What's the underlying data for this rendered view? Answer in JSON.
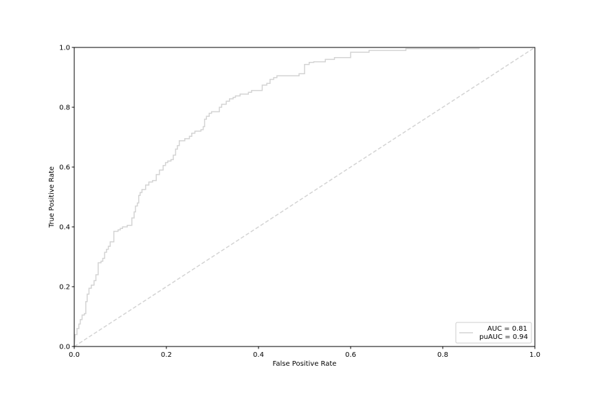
{
  "chart_data": {
    "type": "line",
    "title": "",
    "xlabel": "False Positive Rate",
    "ylabel": "True Positive Rate",
    "xlim": [
      0,
      1
    ],
    "ylim": [
      0,
      1
    ],
    "xticks": [
      "0.0",
      "0.2",
      "0.4",
      "0.6",
      "0.8",
      "1.0"
    ],
    "yticks": [
      "0.0",
      "0.2",
      "0.4",
      "0.6",
      "0.8",
      "1.0"
    ],
    "grid": false,
    "legend_position": "lower-right",
    "legend_lines": [
      "AUC = 0.81",
      "puAUC = 0.94"
    ],
    "series": [
      {
        "style": "solid",
        "color": "#d3d3d3",
        "points": [
          [
            0.0,
            0.0
          ],
          [
            0.002,
            0.04
          ],
          [
            0.006,
            0.04
          ],
          [
            0.006,
            0.06
          ],
          [
            0.01,
            0.06
          ],
          [
            0.01,
            0.075
          ],
          [
            0.013,
            0.075
          ],
          [
            0.013,
            0.09
          ],
          [
            0.017,
            0.09
          ],
          [
            0.017,
            0.105
          ],
          [
            0.022,
            0.105
          ],
          [
            0.022,
            0.11
          ],
          [
            0.025,
            0.11
          ],
          [
            0.025,
            0.15
          ],
          [
            0.028,
            0.15
          ],
          [
            0.028,
            0.175
          ],
          [
            0.032,
            0.175
          ],
          [
            0.032,
            0.195
          ],
          [
            0.037,
            0.195
          ],
          [
            0.037,
            0.205
          ],
          [
            0.043,
            0.205
          ],
          [
            0.043,
            0.22
          ],
          [
            0.047,
            0.22
          ],
          [
            0.047,
            0.24
          ],
          [
            0.052,
            0.24
          ],
          [
            0.052,
            0.28
          ],
          [
            0.058,
            0.28
          ],
          [
            0.058,
            0.285
          ],
          [
            0.062,
            0.285
          ],
          [
            0.062,
            0.295
          ],
          [
            0.066,
            0.295
          ],
          [
            0.066,
            0.315
          ],
          [
            0.07,
            0.315
          ],
          [
            0.07,
            0.325
          ],
          [
            0.074,
            0.325
          ],
          [
            0.074,
            0.335
          ],
          [
            0.078,
            0.335
          ],
          [
            0.078,
            0.35
          ],
          [
            0.086,
            0.35
          ],
          [
            0.086,
            0.385
          ],
          [
            0.095,
            0.385
          ],
          [
            0.095,
            0.39
          ],
          [
            0.1,
            0.39
          ],
          [
            0.1,
            0.395
          ],
          [
            0.105,
            0.395
          ],
          [
            0.105,
            0.4
          ],
          [
            0.115,
            0.4
          ],
          [
            0.115,
            0.405
          ],
          [
            0.125,
            0.405
          ],
          [
            0.125,
            0.43
          ],
          [
            0.13,
            0.43
          ],
          [
            0.13,
            0.45
          ],
          [
            0.133,
            0.45
          ],
          [
            0.133,
            0.47
          ],
          [
            0.137,
            0.47
          ],
          [
            0.137,
            0.48
          ],
          [
            0.14,
            0.48
          ],
          [
            0.14,
            0.505
          ],
          [
            0.143,
            0.505
          ],
          [
            0.143,
            0.515
          ],
          [
            0.147,
            0.515
          ],
          [
            0.147,
            0.525
          ],
          [
            0.155,
            0.525
          ],
          [
            0.155,
            0.54
          ],
          [
            0.162,
            0.54
          ],
          [
            0.162,
            0.55
          ],
          [
            0.17,
            0.55
          ],
          [
            0.17,
            0.555
          ],
          [
            0.178,
            0.555
          ],
          [
            0.178,
            0.575
          ],
          [
            0.185,
            0.575
          ],
          [
            0.185,
            0.59
          ],
          [
            0.193,
            0.59
          ],
          [
            0.193,
            0.605
          ],
          [
            0.198,
            0.605
          ],
          [
            0.198,
            0.615
          ],
          [
            0.203,
            0.615
          ],
          [
            0.203,
            0.62
          ],
          [
            0.21,
            0.62
          ],
          [
            0.21,
            0.625
          ],
          [
            0.215,
            0.625
          ],
          [
            0.215,
            0.64
          ],
          [
            0.22,
            0.64
          ],
          [
            0.22,
            0.66
          ],
          [
            0.224,
            0.66
          ],
          [
            0.224,
            0.672
          ],
          [
            0.228,
            0.672
          ],
          [
            0.228,
            0.688
          ],
          [
            0.24,
            0.688
          ],
          [
            0.24,
            0.695
          ],
          [
            0.25,
            0.695
          ],
          [
            0.25,
            0.703
          ],
          [
            0.255,
            0.703
          ],
          [
            0.255,
            0.713
          ],
          [
            0.262,
            0.713
          ],
          [
            0.262,
            0.72
          ],
          [
            0.275,
            0.72
          ],
          [
            0.275,
            0.725
          ],
          [
            0.28,
            0.725
          ],
          [
            0.28,
            0.735
          ],
          [
            0.283,
            0.735
          ],
          [
            0.283,
            0.76
          ],
          [
            0.287,
            0.76
          ],
          [
            0.287,
            0.77
          ],
          [
            0.293,
            0.77
          ],
          [
            0.293,
            0.78
          ],
          [
            0.298,
            0.78
          ],
          [
            0.298,
            0.785
          ],
          [
            0.315,
            0.785
          ],
          [
            0.315,
            0.8
          ],
          [
            0.32,
            0.8
          ],
          [
            0.32,
            0.81
          ],
          [
            0.33,
            0.81
          ],
          [
            0.33,
            0.82
          ],
          [
            0.337,
            0.82
          ],
          [
            0.337,
            0.828
          ],
          [
            0.345,
            0.828
          ],
          [
            0.345,
            0.833
          ],
          [
            0.35,
            0.833
          ],
          [
            0.35,
            0.838
          ],
          [
            0.36,
            0.838
          ],
          [
            0.36,
            0.844
          ],
          [
            0.378,
            0.844
          ],
          [
            0.378,
            0.85
          ],
          [
            0.385,
            0.85
          ],
          [
            0.385,
            0.856
          ],
          [
            0.408,
            0.856
          ],
          [
            0.408,
            0.874
          ],
          [
            0.418,
            0.874
          ],
          [
            0.418,
            0.88
          ],
          [
            0.425,
            0.88
          ],
          [
            0.425,
            0.893
          ],
          [
            0.433,
            0.893
          ],
          [
            0.433,
            0.899
          ],
          [
            0.44,
            0.899
          ],
          [
            0.44,
            0.905
          ],
          [
            0.488,
            0.905
          ],
          [
            0.488,
            0.912
          ],
          [
            0.5,
            0.912
          ],
          [
            0.5,
            0.943
          ],
          [
            0.51,
            0.943
          ],
          [
            0.51,
            0.95
          ],
          [
            0.52,
            0.95
          ],
          [
            0.52,
            0.952
          ],
          [
            0.545,
            0.952
          ],
          [
            0.545,
            0.96
          ],
          [
            0.565,
            0.96
          ],
          [
            0.565,
            0.966
          ],
          [
            0.6,
            0.966
          ],
          [
            0.6,
            0.984
          ],
          [
            0.64,
            0.984
          ],
          [
            0.64,
            0.99
          ],
          [
            0.72,
            0.99
          ],
          [
            0.72,
            0.996
          ],
          [
            0.88,
            0.996
          ]
        ]
      },
      {
        "style": "dashed",
        "color": "#d3d3d3",
        "points": [
          [
            0.0,
            0.0
          ],
          [
            1.0,
            1.0
          ]
        ]
      }
    ]
  }
}
